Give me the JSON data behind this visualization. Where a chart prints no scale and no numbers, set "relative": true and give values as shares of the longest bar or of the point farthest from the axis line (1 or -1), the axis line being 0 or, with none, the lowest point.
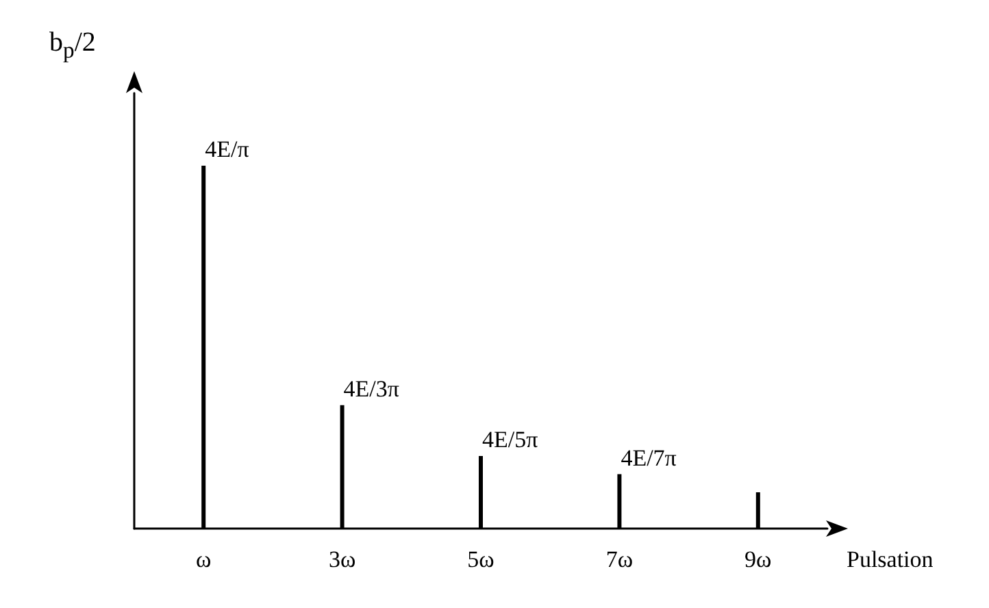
{
  "chart_data": {
    "type": "bar",
    "relative": true,
    "xlabel": "Pulsation",
    "ylabel": "b$_{p}$/2",
    "categories": [
      "ω",
      "3ω",
      "5ω",
      "7ω",
      "9ω"
    ],
    "values": [
      1,
      0.34,
      0.2,
      0.15,
      0.1
    ],
    "annotations": [
      {
        "text": "4E/π",
        "x": "ω",
        "y": 1
      },
      {
        "text": "4E/3π",
        "x": "3ω",
        "y": 0.34
      },
      {
        "text": "4E/5π",
        "x": "5ω",
        "y": 0.2
      },
      {
        "text": "4E/7π",
        "x": "7ω",
        "y": 0.15
      }
    ],
    "tick_labels": "x",
    "color": "#000000"
  }
}
